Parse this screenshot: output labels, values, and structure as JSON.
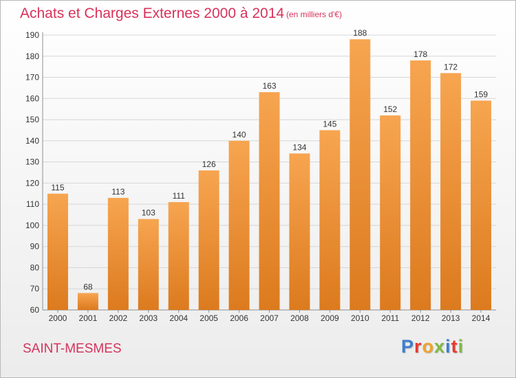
{
  "header": {
    "title": "Achats et Charges Externes 2000 à 2014",
    "subtitle": "(en milliers d'€)"
  },
  "footer": {
    "city": "SAINT-MESMES",
    "logo": "Proxiti",
    "logo_colors": [
      "#3e7fd0",
      "#e8392f",
      "#f0a32e",
      "#7fba42",
      "#3e7fd0",
      "#e8392f",
      "#7fba42"
    ]
  },
  "colors": {
    "title": "#d7325a",
    "bar_top": "#f7a550",
    "bar_bottom": "#dc7a1e",
    "grid": "#d6d6d6",
    "axis": "#8f8f8f",
    "text": "#333333"
  },
  "chart_data": {
    "type": "bar",
    "categories": [
      "2000",
      "2001",
      "2002",
      "2003",
      "2004",
      "2005",
      "2006",
      "2007",
      "2008",
      "2009",
      "2010",
      "2011",
      "2012",
      "2013",
      "2014"
    ],
    "values": [
      115,
      68,
      113,
      103,
      111,
      126,
      140,
      163,
      134,
      145,
      188,
      152,
      178,
      172,
      159
    ],
    "ylim": [
      60,
      190
    ],
    "yticks": [
      60,
      70,
      80,
      90,
      100,
      110,
      120,
      130,
      140,
      150,
      160,
      170,
      180,
      190
    ],
    "grid": true,
    "legend": "none"
  }
}
